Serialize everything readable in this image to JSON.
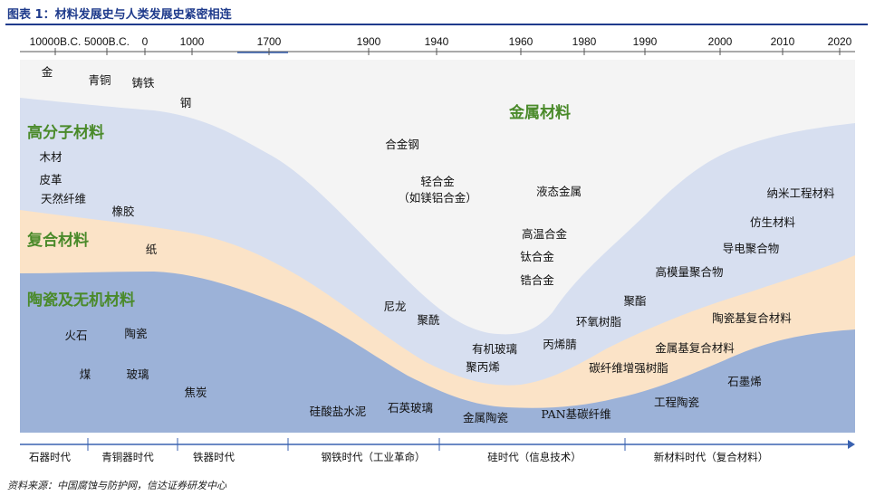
{
  "figure": {
    "title": "图表 1：材料发展史与人类发展史紧密相连",
    "source": "资料来源：中国腐蚀与防护网，信达证券研发中心"
  },
  "chart_data": {
    "type": "area",
    "x_ticks": [
      "10000B.C.",
      "5000B.C.",
      "0",
      "1000",
      "1700",
      "1900",
      "1940",
      "1960",
      "1980",
      "1990",
      "2000",
      "2010",
      "2020"
    ],
    "regions": [
      {
        "name": "金属材料",
        "color": "#f4f4f4"
      },
      {
        "name": "高分子材料",
        "color": "#d7dff0"
      },
      {
        "name": "复合材料",
        "color": "#fbe3c7"
      },
      {
        "name": "陶瓷及无机材料",
        "color": "#9cb2d8"
      }
    ],
    "region_labels": [
      "金属材料",
      "高分子材料",
      "复合材料",
      "陶瓷及无机材料"
    ],
    "materials": [
      {
        "text": "金",
        "color": "#111111"
      },
      {
        "text": "青铜",
        "color": "#111111"
      },
      {
        "text": "铸铁",
        "color": "#111111"
      },
      {
        "text": "钢",
        "color": "#111111"
      },
      {
        "text": "合金钢",
        "color": "#111111"
      },
      {
        "text": "轻合金",
        "color": "#111111"
      },
      {
        "text": "（如镁铝合金）",
        "color": "#111111"
      },
      {
        "text": "液态金属",
        "color": "#111111"
      },
      {
        "text": "高温合金",
        "color": "#111111"
      },
      {
        "text": "钛合金",
        "color": "#111111"
      },
      {
        "text": "锆合金",
        "color": "#111111"
      },
      {
        "text": "纳米工程材料",
        "color": "#111111"
      },
      {
        "text": "仿生材料",
        "color": "#111111"
      },
      {
        "text": "导电聚合物",
        "color": "#111111"
      },
      {
        "text": "高模量聚合物",
        "color": "#111111"
      },
      {
        "text": "木材",
        "color": "#111111"
      },
      {
        "text": "皮革",
        "color": "#111111"
      },
      {
        "text": "天然纤维",
        "color": "#111111"
      },
      {
        "text": "橡胶",
        "color": "#111111"
      },
      {
        "text": "纸",
        "color": "#111111"
      },
      {
        "text": "尼龙",
        "color": "#111111"
      },
      {
        "text": "聚酰",
        "color": "#111111"
      },
      {
        "text": "聚酯",
        "color": "#111111"
      },
      {
        "text": "环氧树脂",
        "color": "#111111"
      },
      {
        "text": "有机玻璃",
        "color": "#111111"
      },
      {
        "text": "聚丙烯",
        "color": "#111111"
      },
      {
        "text": "丙烯腈",
        "color": "#d42020"
      },
      {
        "text": "碳纤维增强树脂",
        "color": "#d42020"
      },
      {
        "text": "陶瓷基复合材料",
        "color": "#111111"
      },
      {
        "text": "金属基复合材料",
        "color": "#111111"
      },
      {
        "text": "石墨烯",
        "color": "#111111"
      },
      {
        "text": "火石",
        "color": "#111111"
      },
      {
        "text": "陶瓷",
        "color": "#111111"
      },
      {
        "text": "煤",
        "color": "#111111"
      },
      {
        "text": "玻璃",
        "color": "#111111"
      },
      {
        "text": "焦炭",
        "color": "#111111"
      },
      {
        "text": "硅酸盐水泥",
        "color": "#111111"
      },
      {
        "text": "石英玻璃",
        "color": "#111111"
      },
      {
        "text": "金属陶瓷",
        "color": "#111111"
      },
      {
        "text": "PAN基碳纤维",
        "color": "#d42020"
      },
      {
        "text": "工程陶瓷",
        "color": "#111111"
      }
    ],
    "eras": [
      {
        "text": "石器时代",
        "color": "#111111"
      },
      {
        "text": "青铜器时代",
        "color": "#111111"
      },
      {
        "text": "铁器时代",
        "color": "#111111"
      },
      {
        "text": "钢铁时代（工业革命）",
        "color": "#111111"
      },
      {
        "text": "硅时代（信息技术）",
        "color": "#111111"
      },
      {
        "text": "新材料时代（复合材料）",
        "color": "#d42020"
      }
    ]
  }
}
